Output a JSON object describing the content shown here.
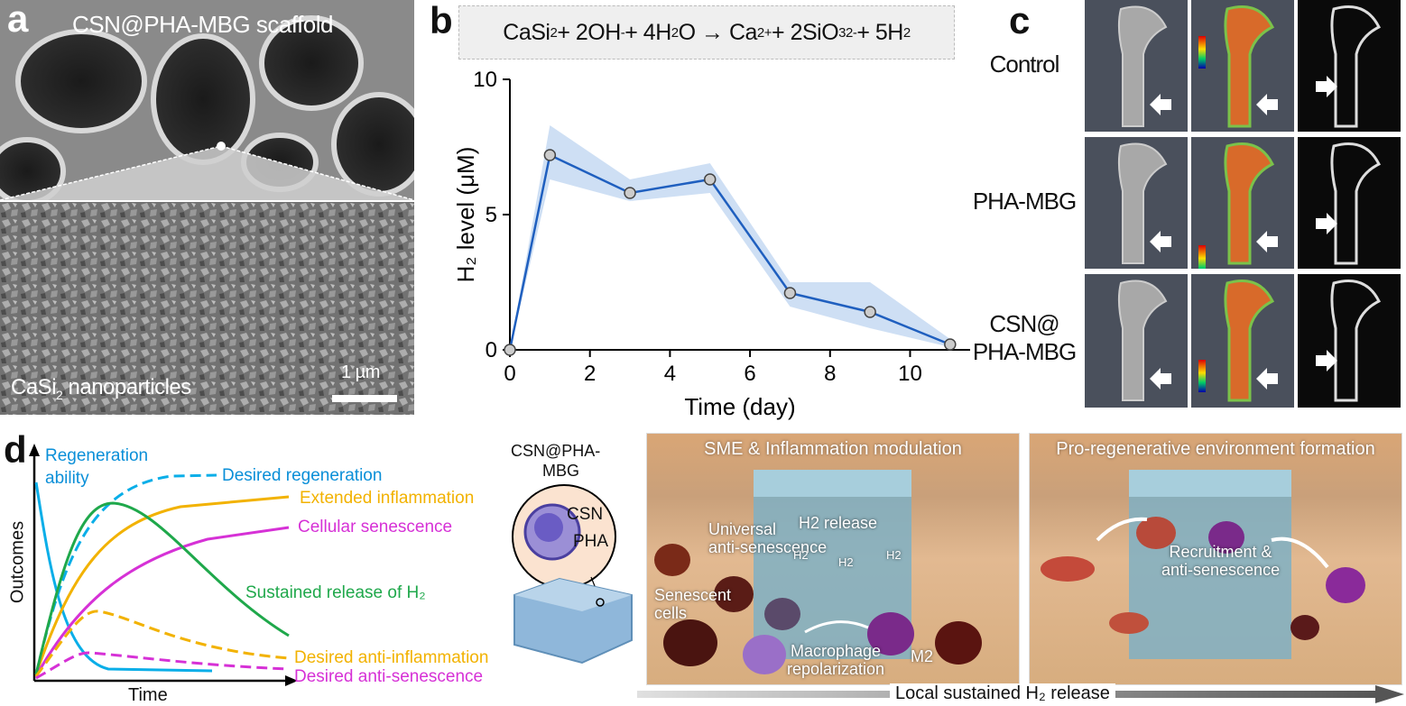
{
  "panel_a": {
    "letter": "a",
    "top_label": "CSN@PHA-MBG scaffold",
    "bottom_label_pre": "CaSi",
    "bottom_label_sub": "2",
    "bottom_label_post": " nanoparticles",
    "scale_bar": "1 µm"
  },
  "panel_b": {
    "letter": "b",
    "equation": {
      "p1": "CaSi",
      "s1": "2",
      "p2": " + 2OH",
      "sup1": "-",
      "p3": " + 4H",
      "s2": "2",
      "p4": "O → Ca",
      "sup2": "2+",
      "p5": " + 2SiO",
      "s3": "3",
      "sup3": "2-",
      "p6": " + 5H",
      "s4": "2"
    },
    "ylabel": "H₂ level (μM)",
    "xlabel": "Time (day)"
  },
  "chart_data": {
    "type": "line",
    "x": [
      0,
      1,
      3,
      5,
      7,
      9,
      11
    ],
    "y": [
      0,
      7.2,
      5.8,
      6.3,
      2.1,
      1.4,
      0.2
    ],
    "band_upper": [
      0,
      8.3,
      6.3,
      6.9,
      2.5,
      2.5,
      0.4
    ],
    "band_lower": [
      0,
      6.3,
      5.5,
      5.8,
      1.6,
      0.8,
      0.1
    ],
    "xlabel": "Time (day)",
    "ylabel": "H₂ level (μM)",
    "xlim": [
      0,
      11.5
    ],
    "ylim": [
      0,
      10
    ],
    "xticks": [
      0,
      2,
      4,
      6,
      8,
      10
    ],
    "yticks": [
      0,
      5,
      10
    ],
    "line_color": "#1f5fbf",
    "band_color": "#c9dcf3"
  },
  "panel_c": {
    "letter": "c",
    "rows": [
      {
        "label": "Control"
      },
      {
        "label": "PHA-MBG"
      },
      {
        "label": "CSN@\nPHA-MBG"
      }
    ]
  },
  "panel_d": {
    "letter": "d",
    "y_axis": "Outcomes",
    "x_axis": "Time",
    "regen_label_1": "Regeneration",
    "regen_label_2": "ability",
    "legend": [
      {
        "text": "Desired regeneration",
        "color": "#0a8fd8"
      },
      {
        "text": "Extended inflammation",
        "color": "#f2b200"
      },
      {
        "text": "Cellular senescence",
        "color": "#d631d6"
      },
      {
        "text": "Sustained release of H₂",
        "color": "#1fa84b"
      },
      {
        "text": "Desired anti-inflammation",
        "color": "#f2b200"
      },
      {
        "text": "Desired anti-senescence",
        "color": "#d631d6"
      }
    ],
    "scaffold_title_1": "CSN@PHA-",
    "scaffold_title_2": "MBG",
    "csn": "CSN",
    "pha": "PHA",
    "illus1": {
      "title": "SME & Inflammation modulation",
      "universal": "Universal\nanti-senescence",
      "h2_release": "H2 release",
      "h2": "H2",
      "senescent": "Senescent\ncells",
      "macrophage": "Macrophage\nrepolarization",
      "m2": "M2"
    },
    "illus2": {
      "title": "Pro-regenerative environment formation",
      "recruit": "Recruitment &\nanti-senescence"
    },
    "bottom_arrow": "Local sustained H₂ release"
  }
}
